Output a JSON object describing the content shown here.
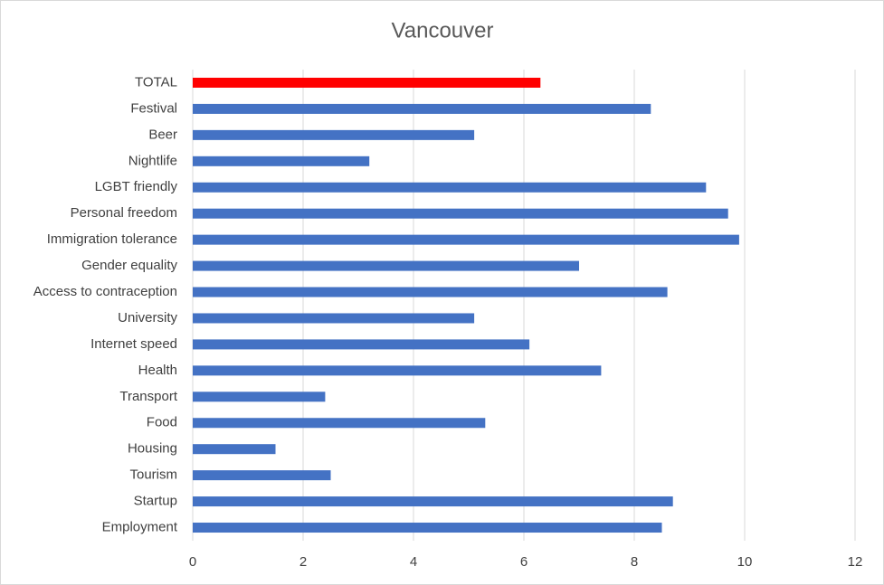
{
  "chart_data": {
    "type": "hbar",
    "title": "Vancouver",
    "categories": [
      "TOTAL",
      "Festival",
      "Beer",
      "Nightlife",
      "LGBT friendly",
      "Personal freedom",
      "Immigration tolerance",
      "Gender equality",
      "Access to contraception",
      "University",
      "Internet speed",
      "Health",
      "Transport",
      "Food",
      "Housing",
      "Tourism",
      "Startup",
      "Employment"
    ],
    "values": [
      6.3,
      8.3,
      5.1,
      3.2,
      9.3,
      9.7,
      9.9,
      7.0,
      8.6,
      5.1,
      6.1,
      7.4,
      2.4,
      5.3,
      1.5,
      2.5,
      8.7,
      8.5
    ],
    "colors": [
      "#ff0000",
      "#4472c4",
      "#4472c4",
      "#4472c4",
      "#4472c4",
      "#4472c4",
      "#4472c4",
      "#4472c4",
      "#4472c4",
      "#4472c4",
      "#4472c4",
      "#4472c4",
      "#4472c4",
      "#4472c4",
      "#4472c4",
      "#4472c4",
      "#4472c4",
      "#4472c4"
    ],
    "xlim": [
      0,
      12
    ],
    "xticks": [
      0,
      2,
      4,
      6,
      8,
      10,
      12
    ],
    "grid": true
  }
}
